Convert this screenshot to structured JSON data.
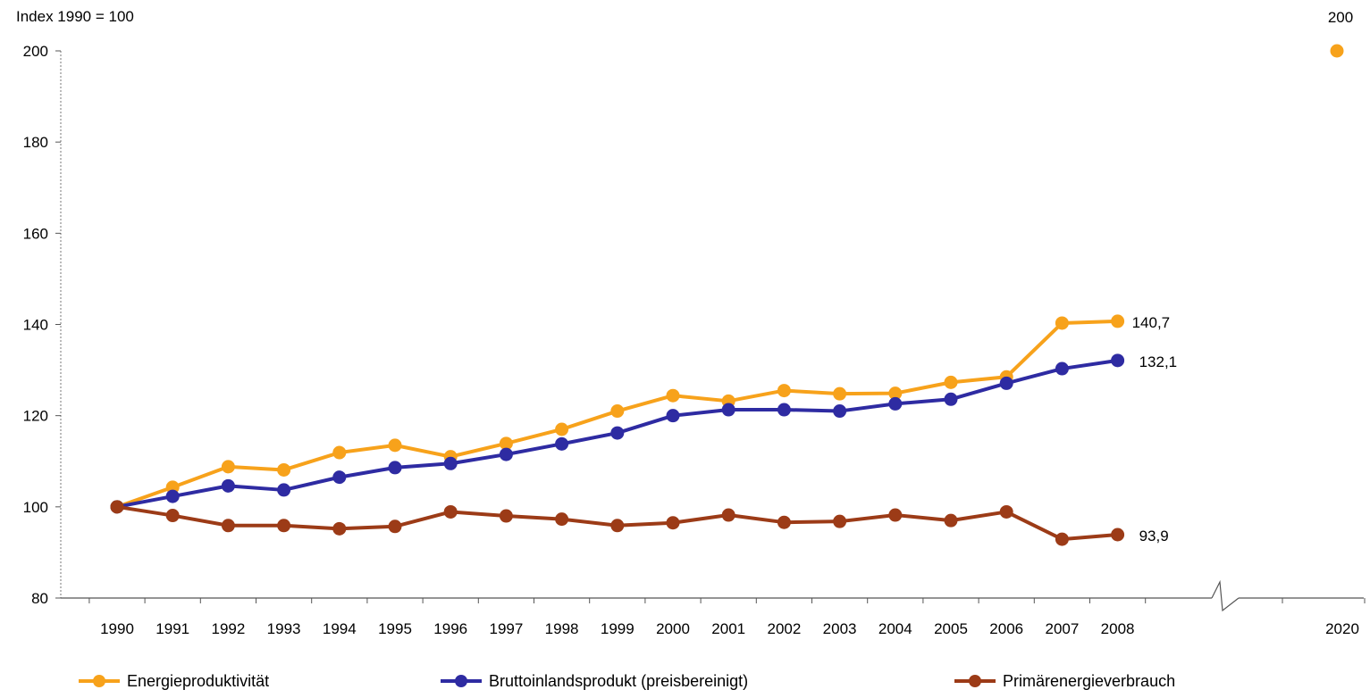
{
  "chart_data": {
    "type": "line",
    "ylabel": "Index 1990 = 100",
    "ylim": [
      80,
      200
    ],
    "yticks": [
      "80",
      "100",
      "120",
      "140",
      "160",
      "180",
      "200"
    ],
    "categories": [
      "1990",
      "1991",
      "1992",
      "1993",
      "1994",
      "1995",
      "1996",
      "1997",
      "1998",
      "1999",
      "2000",
      "2001",
      "2002",
      "2003",
      "2004",
      "2005",
      "2006",
      "2007",
      "2008"
    ],
    "target": {
      "x": "2020",
      "value": 200,
      "label": "200"
    },
    "grid": false,
    "legend_position": "bottom",
    "axis_break": "between 2008 and 2020",
    "series": [
      {
        "name": "Energieproduktivität",
        "color": "#f7a21b",
        "values": [
          100,
          104.3,
          108.8,
          108.1,
          111.9,
          113.5,
          111.0,
          113.9,
          117.0,
          121.0,
          124.4,
          123.2,
          125.5,
          124.8,
          124.9,
          127.3,
          128.5,
          140.3,
          140.7
        ],
        "end_label": "140,7"
      },
      {
        "name": "Bruttoinlandsprodukt (preisbereinigt)",
        "color": "#2e2ba2",
        "values": [
          100,
          102.3,
          104.6,
          103.7,
          106.5,
          108.6,
          109.5,
          111.5,
          113.8,
          116.2,
          120.0,
          121.3,
          121.3,
          121.0,
          122.6,
          123.6,
          127.1,
          130.3,
          132.1
        ],
        "end_label": "132,1"
      },
      {
        "name": "Primärenergieverbrauch",
        "color": "#9c3b17",
        "values": [
          100,
          98.1,
          95.9,
          95.9,
          95.2,
          95.7,
          98.9,
          98.0,
          97.3,
          95.9,
          96.5,
          98.2,
          96.6,
          96.8,
          98.2,
          97.0,
          98.9,
          92.9,
          93.9
        ],
        "end_label": "93,9"
      }
    ]
  }
}
